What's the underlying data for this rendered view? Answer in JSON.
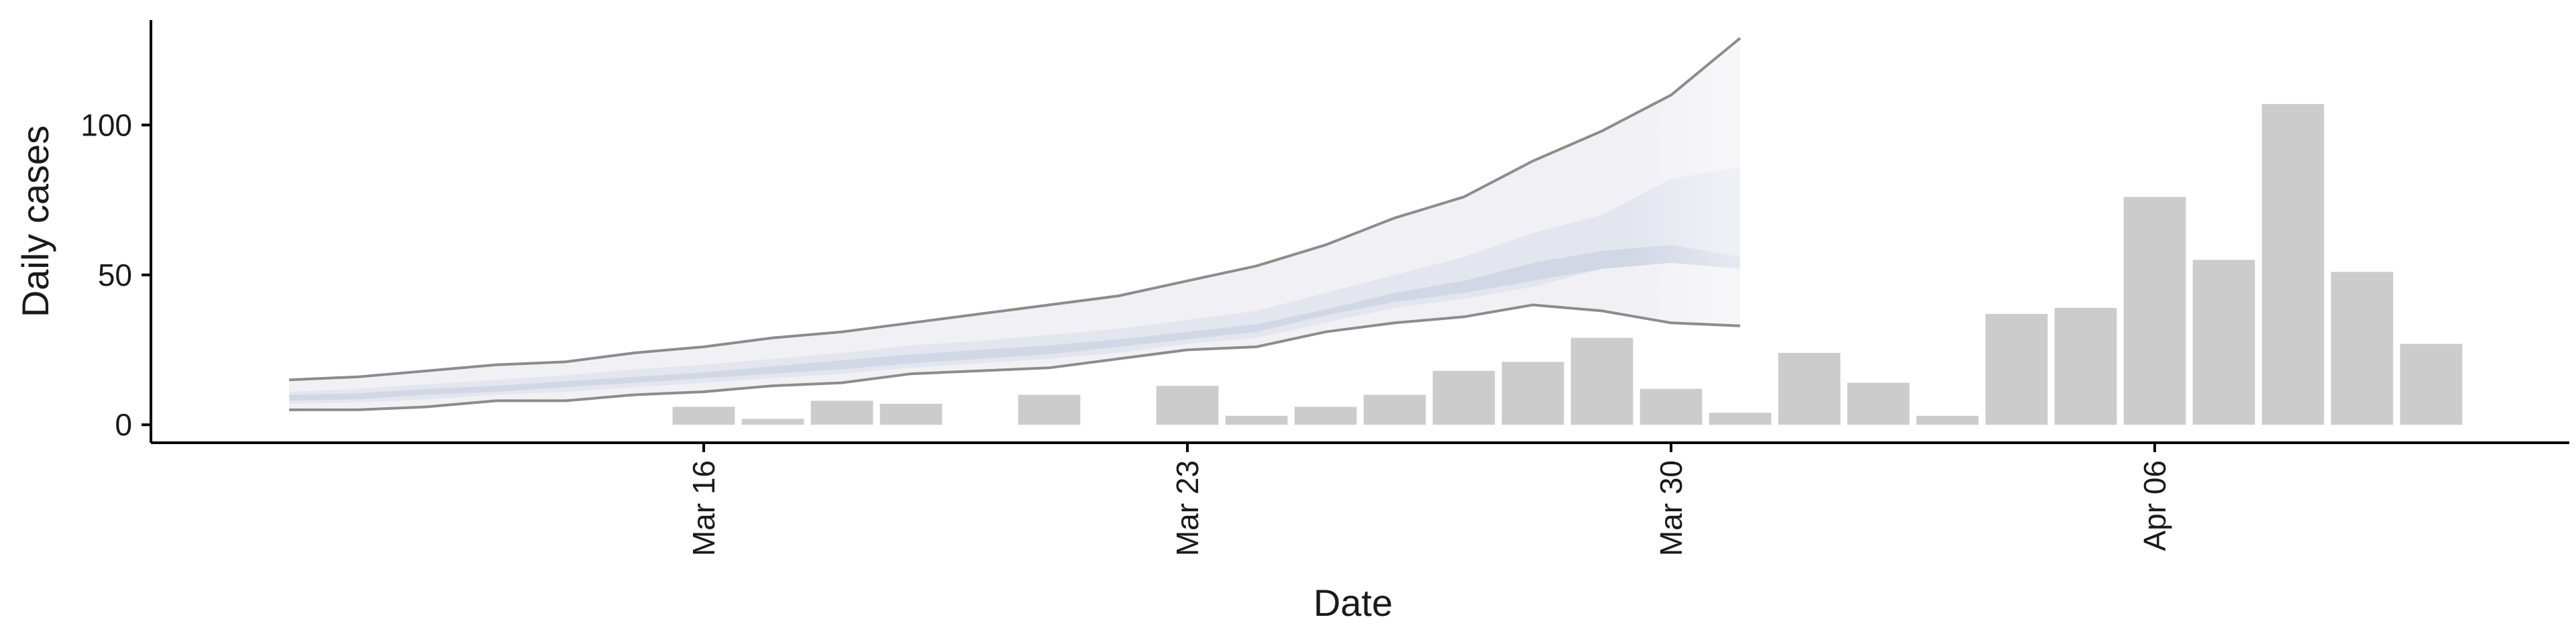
{
  "chart_data": {
    "type": "bar",
    "xlabel": "Date",
    "ylabel": "Daily cases",
    "x_ticks": [
      {
        "date": "2020-03-16",
        "label": "Mar 16"
      },
      {
        "date": "2020-03-23",
        "label": "Mar 23"
      },
      {
        "date": "2020-03-30",
        "label": "Mar 30"
      },
      {
        "date": "2020-04-06",
        "label": "Apr 06"
      }
    ],
    "y_ticks": [
      0,
      50,
      100
    ],
    "xlim": [
      "2020-03-08",
      "2020-04-12"
    ],
    "ylim": [
      -6,
      135
    ],
    "grid": false,
    "bars": {
      "color": "#cccccc",
      "dates": [
        "2020-03-16",
        "2020-03-17",
        "2020-03-18",
        "2020-03-19",
        "2020-03-21",
        "2020-03-23",
        "2020-03-24",
        "2020-03-25",
        "2020-03-26",
        "2020-03-27",
        "2020-03-28",
        "2020-03-29",
        "2020-03-30",
        "2020-03-31",
        "2020-04-01",
        "2020-04-02",
        "2020-04-03",
        "2020-04-04",
        "2020-04-05",
        "2020-04-06",
        "2020-04-07",
        "2020-04-08",
        "2020-04-09",
        "2020-04-10"
      ],
      "values": [
        6,
        2,
        8,
        7,
        10,
        13,
        3,
        6,
        10,
        18,
        21,
        29,
        12,
        4,
        24,
        14,
        3,
        37,
        39,
        76,
        55,
        107,
        51,
        27
      ]
    },
    "forecast": {
      "dates": [
        "2020-03-10",
        "2020-03-11",
        "2020-03-12",
        "2020-03-13",
        "2020-03-14",
        "2020-03-15",
        "2020-03-16",
        "2020-03-17",
        "2020-03-18",
        "2020-03-19",
        "2020-03-20",
        "2020-03-21",
        "2020-03-22",
        "2020-03-23",
        "2020-03-24",
        "2020-03-25",
        "2020-03-26",
        "2020-03-27",
        "2020-03-28",
        "2020-03-29",
        "2020-03-30",
        "2020-03-31",
        "2020-04-01"
      ],
      "upper90": [
        15,
        16,
        18,
        20,
        21,
        24,
        26,
        29,
        31,
        34,
        37,
        40,
        43,
        48,
        53,
        60,
        69,
        76,
        88,
        98,
        110,
        129,
        null
      ],
      "lower90": [
        5,
        5,
        6,
        8,
        8,
        10,
        11,
        13,
        14,
        17,
        18,
        19,
        22,
        25,
        26,
        31,
        34,
        36,
        40,
        38,
        34,
        33,
        null
      ],
      "upper50": [
        11,
        12,
        13.5,
        15,
        16.5,
        18.5,
        20,
        22,
        24,
        26.5,
        28,
        30,
        32,
        35,
        38,
        44,
        50,
        56,
        64,
        70,
        82,
        86,
        null
      ],
      "lower50": [
        7,
        7.5,
        8.5,
        10,
        11,
        12.5,
        14,
        15.5,
        17,
        19,
        20.5,
        22,
        24,
        27,
        29,
        34,
        39,
        42,
        46,
        52,
        60,
        52,
        null
      ],
      "upper20": [
        10,
        10.5,
        12,
        13,
        14.5,
        16,
        17.5,
        19.5,
        21.5,
        23.5,
        25,
        26.5,
        28.5,
        31,
        33.5,
        38.5,
        44,
        48,
        54,
        58,
        60,
        56,
        null
      ],
      "lower20": [
        8,
        8.5,
        10,
        11,
        12.5,
        14,
        15.5,
        17,
        18.5,
        20.5,
        22,
        23.5,
        26,
        28.5,
        31,
        36.5,
        41,
        44,
        48,
        52,
        54,
        52,
        null
      ]
    },
    "colors": {
      "band90": "#f1f1f5",
      "band50": "#e3e6ef",
      "band20": "#d2d7e6",
      "outline": "#8c8c8c",
      "axis": "#000000"
    }
  }
}
